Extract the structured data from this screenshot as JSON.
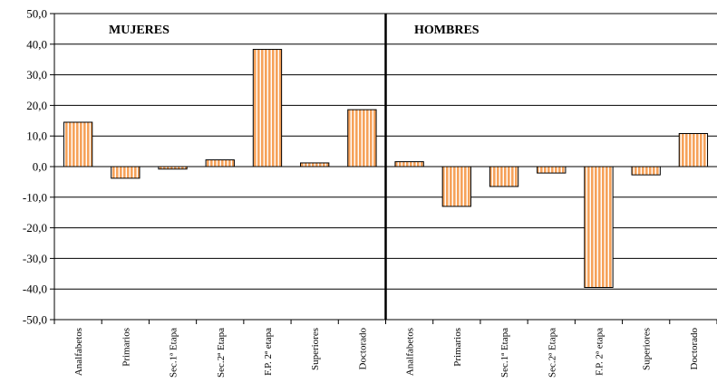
{
  "chart_data": {
    "type": "bar",
    "panels": [
      "MUJERES",
      "HOMBRES"
    ],
    "categories": [
      "Analfabetos",
      "Primarios",
      "Sec.1ª Etapa",
      "Sec.2ª Etapa",
      "F.P. 2ª etapa",
      "Superiores",
      "Doctorado"
    ],
    "series": [
      {
        "panel": "MUJERES",
        "values": [
          14.5,
          -3.8,
          -0.8,
          2.2,
          38.3,
          1.2,
          18.6
        ]
      },
      {
        "panel": "HOMBRES",
        "values": [
          1.6,
          -13.0,
          -6.5,
          -2.1,
          -39.5,
          -2.7,
          10.8
        ]
      }
    ],
    "ylim": [
      -50,
      50
    ],
    "yticks": [
      "50,0",
      "40,0",
      "30,0",
      "20,0",
      "10,0",
      "0,0",
      "-10,0",
      "-20,0",
      "-30,0",
      "-40,0",
      "-50,0"
    ],
    "grid": true,
    "colors": {
      "bar_fill": "#f6a25a",
      "bar_stripe": "#ffffff",
      "bar_stroke": "#000000"
    }
  }
}
